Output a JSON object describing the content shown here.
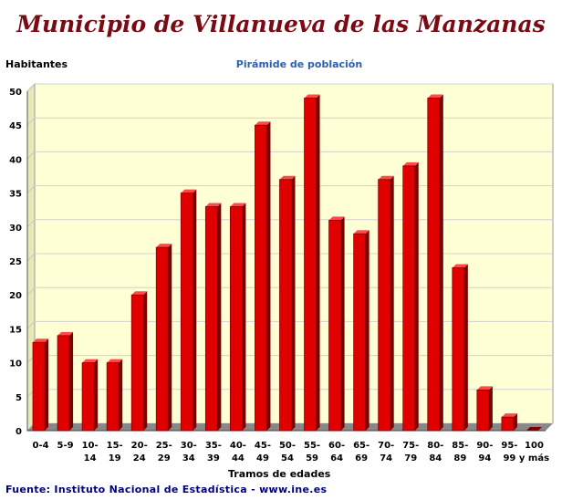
{
  "title": "Municipio de Villanueva de las Manzanas",
  "source": "Fuente: Instituto Nacional de Estadística - www.ine.es",
  "colors": {
    "bar": "#e00000",
    "bar_dark": "#7a0000",
    "title": "#7a0a14",
    "subtitle": "#2f5fb0",
    "plot_bg": "#ffffd6",
    "floor": "#888888"
  },
  "chart_data": {
    "type": "bar",
    "title": "Pirámide de población",
    "xlabel": "Tramos de edades",
    "ylabel": "Habitantes",
    "ylim": [
      0,
      50
    ],
    "yticks": [
      0,
      5,
      10,
      15,
      20,
      25,
      30,
      35,
      40,
      45,
      50
    ],
    "grid": true,
    "categories": [
      "0-4",
      "5-9",
      "10-14",
      "15-19",
      "20-24",
      "25-29",
      "30-34",
      "35-39",
      "40-44",
      "45-49",
      "50-54",
      "55-59",
      "60-64",
      "65-69",
      "70-74",
      "75-79",
      "80-84",
      "85-89",
      "90-94",
      "95-99",
      "100 y más"
    ],
    "values": [
      13,
      14,
      10,
      10,
      20,
      27,
      35,
      33,
      33,
      45,
      37,
      49,
      31,
      29,
      37,
      39,
      49,
      24,
      6,
      2,
      0
    ]
  }
}
